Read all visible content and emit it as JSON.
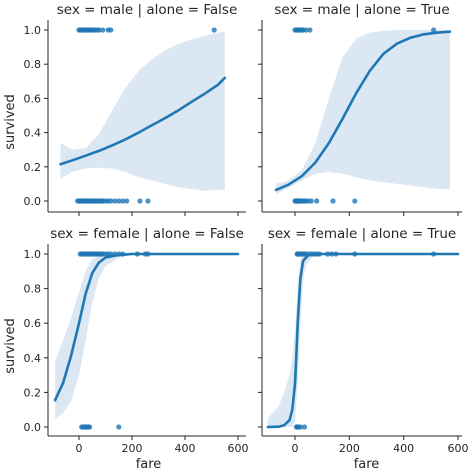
{
  "chart_data": {
    "type": "scatter",
    "layout": "2x2 facet grid, shared x and y axes",
    "xlabel": "fare",
    "ylabel": "survived",
    "xlim": [
      -100,
      650
    ],
    "ylim": [
      -0.05,
      1.05
    ],
    "xticks": [
      0,
      200,
      400,
      600
    ],
    "yticks": [
      0.0,
      0.2,
      0.4,
      0.6,
      0.8,
      1.0
    ],
    "grid": false,
    "colors": {
      "points": "#1f77b4",
      "fit_line": "#1f77b4",
      "confidence_band": "#dbe8f4",
      "axes": "#262626"
    },
    "panels": [
      {
        "title": "sex = male | alone = False",
        "points_survived": [
          0,
          5,
          8,
          12,
          15,
          20,
          25,
          30,
          35,
          40,
          45,
          50,
          55,
          60,
          70,
          75,
          90,
          110,
          120,
          510
        ],
        "points_died": [
          -5,
          0,
          5,
          8,
          10,
          14,
          18,
          22,
          26,
          30,
          35,
          40,
          45,
          50,
          55,
          60,
          65,
          70,
          75,
          80,
          85,
          90,
          100,
          110,
          120,
          135,
          150,
          165,
          180,
          230,
          260
        ],
        "fit_line": {
          "x": [
            -70,
            -25,
            25,
            75,
            125,
            175,
            225,
            275,
            325,
            375,
            425,
            475,
            525,
            550
          ],
          "y": [
            0.215,
            0.238,
            0.265,
            0.293,
            0.325,
            0.36,
            0.4,
            0.443,
            0.485,
            0.53,
            0.58,
            0.628,
            0.68,
            0.72
          ]
        },
        "ci_lower": {
          "x": [
            -70,
            -25,
            25,
            75,
            125,
            175,
            225,
            275,
            325,
            375,
            425,
            475,
            525,
            550
          ],
          "y": [
            0.13,
            0.17,
            0.19,
            0.195,
            0.19,
            0.17,
            0.14,
            0.12,
            0.1,
            0.08,
            0.07,
            0.06,
            0.065,
            0.065
          ]
        },
        "ci_upper": {
          "x": [
            -70,
            -25,
            25,
            75,
            125,
            175,
            225,
            275,
            325,
            375,
            425,
            475,
            525,
            550
          ],
          "y": [
            0.34,
            0.3,
            0.31,
            0.39,
            0.53,
            0.66,
            0.76,
            0.83,
            0.88,
            0.92,
            0.945,
            0.965,
            0.985,
            0.99
          ]
        }
      },
      {
        "title": "sex = male | alone = True",
        "points_survived": [
          0,
          5,
          8,
          10,
          15,
          20,
          25,
          30,
          40,
          55,
          510
        ],
        "points_died": [
          0,
          3,
          5,
          7,
          8,
          10,
          12,
          15,
          18,
          20,
          25,
          30,
          35,
          40,
          50,
          60,
          80,
          140,
          220
        ],
        "fit_line": {
          "x": [
            -70,
            -25,
            25,
            75,
            125,
            175,
            225,
            275,
            325,
            375,
            425,
            475,
            525,
            570
          ],
          "y": [
            0.065,
            0.095,
            0.145,
            0.225,
            0.34,
            0.48,
            0.63,
            0.76,
            0.86,
            0.92,
            0.955,
            0.975,
            0.985,
            0.99
          ]
        },
        "ci_lower": {
          "x": [
            -70,
            -25,
            25,
            75,
            125,
            175,
            225,
            275,
            325,
            375,
            425,
            475,
            525,
            570
          ],
          "y": [
            0.04,
            0.075,
            0.12,
            0.16,
            0.17,
            0.16,
            0.14,
            0.12,
            0.11,
            0.1,
            0.09,
            0.08,
            0.07,
            0.07
          ]
        },
        "ci_upper": {
          "x": [
            -70,
            -25,
            25,
            75,
            125,
            175,
            225,
            275,
            325,
            375,
            425,
            475,
            525,
            570
          ],
          "y": [
            0.1,
            0.12,
            0.18,
            0.34,
            0.6,
            0.84,
            0.95,
            0.985,
            0.995,
            1.0,
            1.0,
            1.0,
            1.0,
            1.0
          ]
        }
      },
      {
        "title": "sex = female | alone = False",
        "points_survived": [
          5,
          10,
          15,
          20,
          25,
          30,
          35,
          40,
          45,
          50,
          55,
          60,
          65,
          70,
          75,
          80,
          85,
          90,
          100,
          110,
          120,
          135,
          150,
          165,
          220,
          250,
          260
        ],
        "points_died": [
          10,
          15,
          20,
          25,
          30,
          35,
          40,
          150
        ],
        "fit_line": {
          "x": [
            -90,
            -60,
            -30,
            0,
            25,
            50,
            75,
            100,
            150,
            200,
            250,
            300,
            350,
            400,
            450,
            500,
            550,
            600
          ],
          "y": [
            0.155,
            0.255,
            0.41,
            0.6,
            0.77,
            0.89,
            0.95,
            0.98,
            0.995,
            1.0,
            1.0,
            1.0,
            1.0,
            1.0,
            1.0,
            1.0,
            1.0,
            1.0
          ]
        },
        "ci_lower": {
          "x": [
            -90,
            -60,
            -30,
            0,
            25,
            50,
            75,
            100,
            150,
            200,
            250,
            300,
            350,
            400,
            450,
            500,
            550,
            600
          ],
          "y": [
            0.05,
            0.08,
            0.15,
            0.3,
            0.5,
            0.72,
            0.86,
            0.93,
            0.98,
            0.995,
            1.0,
            1.0,
            1.0,
            1.0,
            1.0,
            1.0,
            1.0,
            1.0
          ]
        },
        "ci_upper": {
          "x": [
            -90,
            -60,
            -30,
            0,
            25,
            50,
            75,
            100,
            150,
            200,
            250,
            300,
            350,
            400,
            450,
            500,
            550,
            600
          ],
          "y": [
            0.38,
            0.5,
            0.63,
            0.78,
            0.9,
            0.97,
            0.99,
            1.0,
            1.0,
            1.0,
            1.0,
            1.0,
            1.0,
            1.0,
            1.0,
            1.0,
            1.0,
            1.0
          ]
        }
      },
      {
        "title": "sex = female | alone = True",
        "points_survived": [
          8,
          10,
          12,
          15,
          20,
          25,
          30,
          35,
          40,
          50,
          60,
          70,
          80,
          90,
          120,
          135,
          150,
          220,
          510
        ],
        "points_died": [
          5,
          8,
          10,
          12,
          20,
          35
        ],
        "fit_line": {
          "x": [
            -100,
            -60,
            -40,
            -20,
            -10,
            0,
            5,
            10,
            20,
            30,
            50,
            100,
            200,
            300,
            400,
            500,
            600
          ],
          "y": [
            0.0,
            0.002,
            0.01,
            0.04,
            0.1,
            0.25,
            0.42,
            0.6,
            0.86,
            0.96,
            0.995,
            1.0,
            1.0,
            1.0,
            1.0,
            1.0,
            1.0
          ]
        },
        "ci_lower": {
          "x": [
            -100,
            -60,
            -40,
            -20,
            -10,
            0,
            10,
            20,
            30,
            40,
            60,
            100,
            200,
            300,
            400,
            500,
            600
          ],
          "y": [
            0.0,
            0.0,
            0.0,
            0.0,
            0.0,
            0.03,
            0.25,
            0.6,
            0.85,
            0.93,
            0.98,
            1.0,
            1.0,
            1.0,
            1.0,
            1.0,
            1.0
          ]
        },
        "ci_upper": {
          "x": [
            -100,
            -60,
            -40,
            -20,
            -10,
            0,
            10,
            20,
            30,
            40,
            60,
            100,
            200,
            300,
            400,
            500,
            600
          ],
          "y": [
            0.05,
            0.12,
            0.2,
            0.3,
            0.4,
            0.55,
            0.82,
            0.96,
            1.0,
            1.0,
            1.0,
            1.0,
            1.0,
            1.0,
            1.0,
            1.0,
            1.0
          ]
        }
      }
    ]
  }
}
